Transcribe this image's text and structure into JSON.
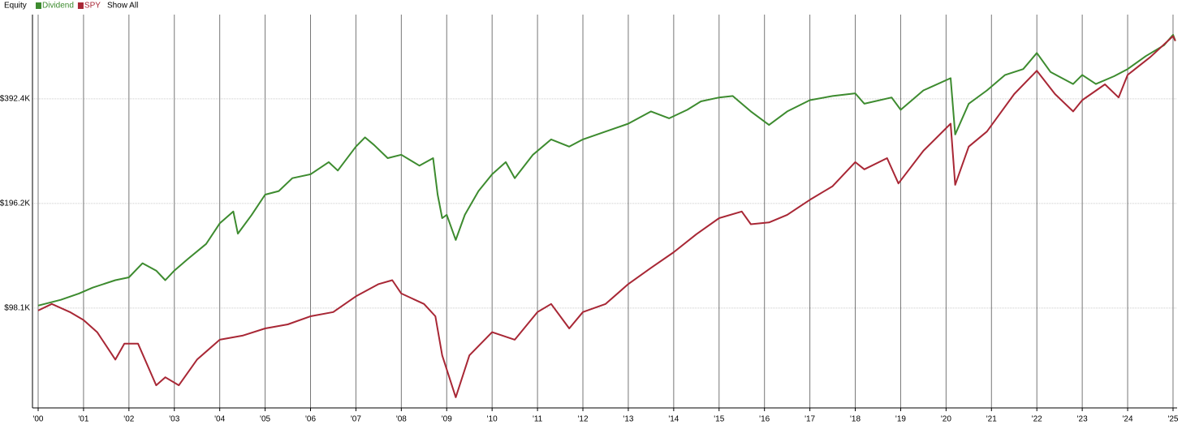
{
  "chart_data": {
    "type": "line",
    "title": "Equity",
    "show_all": "Show All",
    "log_scale": true,
    "grid": true,
    "xlim": [
      1999.875,
      2025.09
    ],
    "xticks": [
      {
        "value": 2000,
        "label": "'00"
      },
      {
        "value": 2001,
        "label": "'01"
      },
      {
        "value": 2002,
        "label": "'02"
      },
      {
        "value": 2003,
        "label": "'03"
      },
      {
        "value": 2004,
        "label": "'04"
      },
      {
        "value": 2005,
        "label": "'05"
      },
      {
        "value": 2006,
        "label": "'06"
      },
      {
        "value": 2007,
        "label": "'07"
      },
      {
        "value": 2008,
        "label": "'08"
      },
      {
        "value": 2009,
        "label": "'09"
      },
      {
        "value": 2010,
        "label": "'10"
      },
      {
        "value": 2011,
        "label": "'11"
      },
      {
        "value": 2012,
        "label": "'12"
      },
      {
        "value": 2013,
        "label": "'13"
      },
      {
        "value": 2014,
        "label": "'14"
      },
      {
        "value": 2015,
        "label": "'15"
      },
      {
        "value": 2016,
        "label": "'16"
      },
      {
        "value": 2017,
        "label": "'17"
      },
      {
        "value": 2018,
        "label": "'18"
      },
      {
        "value": 2019,
        "label": "'19"
      },
      {
        "value": 2020,
        "label": "'20"
      },
      {
        "value": 2021,
        "label": "'21"
      },
      {
        "value": 2022,
        "label": "'22"
      },
      {
        "value": 2023,
        "label": "'23"
      },
      {
        "value": 2024,
        "label": "'24"
      },
      {
        "value": 2025,
        "label": "'25"
      }
    ],
    "ylim": [
      50600,
      686000
    ],
    "yticks": [
      {
        "value": 98100,
        "label": "$98.1K"
      },
      {
        "value": 196200,
        "label": "$196.2K"
      },
      {
        "value": 392400,
        "label": "$392.4K"
      }
    ],
    "series": [
      {
        "name": "Dividend",
        "color": "#3d8b2f",
        "x": [
          2000.0,
          2000.5,
          2000.9,
          2001.2,
          2001.7,
          2002.0,
          2002.3,
          2002.6,
          2002.8,
          2003.0,
          2003.3,
          2003.7,
          2004.0,
          2004.3,
          2004.4,
          2004.7,
          2005.0,
          2005.3,
          2005.6,
          2006.0,
          2006.4,
          2006.6,
          2007.0,
          2007.2,
          2007.4,
          2007.7,
          2008.0,
          2008.4,
          2008.7,
          2008.8,
          2008.9,
          2009.0,
          2009.2,
          2009.4,
          2009.7,
          2010.0,
          2010.3,
          2010.5,
          2010.9,
          2011.3,
          2011.7,
          2012.0,
          2012.5,
          2013.0,
          2013.5,
          2013.9,
          2014.3,
          2014.6,
          2015.0,
          2015.3,
          2015.7,
          2016.1,
          2016.5,
          2017.0,
          2017.5,
          2018.0,
          2018.2,
          2018.8,
          2019.0,
          2019.5,
          2020.1,
          2020.2,
          2020.5,
          2020.9,
          2021.3,
          2021.7,
          2022.0,
          2022.3,
          2022.8,
          2023.0,
          2023.3,
          2023.7,
          2024.0,
          2024.4,
          2024.8,
          2025.0,
          2025.05
        ],
        "values": [
          99700,
          103600,
          108000,
          112300,
          118000,
          120200,
          132000,
          125700,
          118000,
          125700,
          135800,
          150000,
          172000,
          186000,
          160600,
          181600,
          208000,
          213000,
          232000,
          238000,
          258000,
          244000,
          286000,
          304000,
          289000,
          265000,
          271000,
          252000,
          265000,
          208000,
          178000,
          182000,
          154000,
          182000,
          213000,
          238000,
          258000,
          232000,
          271000,
          300000,
          286000,
          300000,
          316000,
          333000,
          361000,
          345000,
          365000,
          386000,
          396000,
          400000,
          361000,
          330000,
          361000,
          389000,
          400000,
          407000,
          380000,
          396000,
          365000,
          415000,
          450000,
          310000,
          380000,
          415000,
          460000,
          478000,
          532000,
          469000,
          433000,
          460000,
          433000,
          456000,
          478000,
          521000,
          560000,
          600000,
          576000
        ]
      },
      {
        "name": "SPY",
        "color": "#a82735",
        "x": [
          2000.0,
          2000.3,
          2000.7,
          2001.0,
          2001.3,
          2001.7,
          2001.9,
          2002.2,
          2002.6,
          2002.8,
          2003.1,
          2003.5,
          2004.0,
          2004.5,
          2005.0,
          2005.5,
          2006.0,
          2006.5,
          2007.0,
          2007.5,
          2007.8,
          2008.0,
          2008.5,
          2008.75,
          2008.9,
          2009.2,
          2009.5,
          2010.0,
          2010.5,
          2011.0,
          2011.3,
          2011.7,
          2012.0,
          2012.5,
          2013.0,
          2013.5,
          2014.0,
          2014.5,
          2015.0,
          2015.5,
          2015.7,
          2016.1,
          2016.5,
          2017.0,
          2017.5,
          2018.0,
          2018.2,
          2018.7,
          2018.95,
          2019.5,
          2020.1,
          2020.2,
          2020.5,
          2020.9,
          2021.5,
          2022.0,
          2022.4,
          2022.8,
          2023.0,
          2023.5,
          2023.8,
          2024.0,
          2024.5,
          2025.0,
          2025.05
        ],
        "values": [
          96500,
          100800,
          95500,
          90600,
          83600,
          69700,
          77500,
          77500,
          58800,
          62000,
          58800,
          69700,
          79500,
          81700,
          85700,
          88000,
          92900,
          95500,
          106000,
          115000,
          118000,
          108000,
          100800,
          92900,
          71700,
          54300,
          71700,
          83600,
          79500,
          95500,
          100800,
          85700,
          95500,
          100800,
          115000,
          128000,
          142000,
          160000,
          178000,
          186000,
          171000,
          173000,
          182000,
          201000,
          220000,
          258000,
          246000,
          265000,
          224000,
          278000,
          333000,
          222000,
          286000,
          316000,
          405000,
          473000,
          405000,
          361000,
          389000,
          432000,
          396000,
          460000,
          518000,
          595000,
          576000
        ]
      }
    ]
  }
}
